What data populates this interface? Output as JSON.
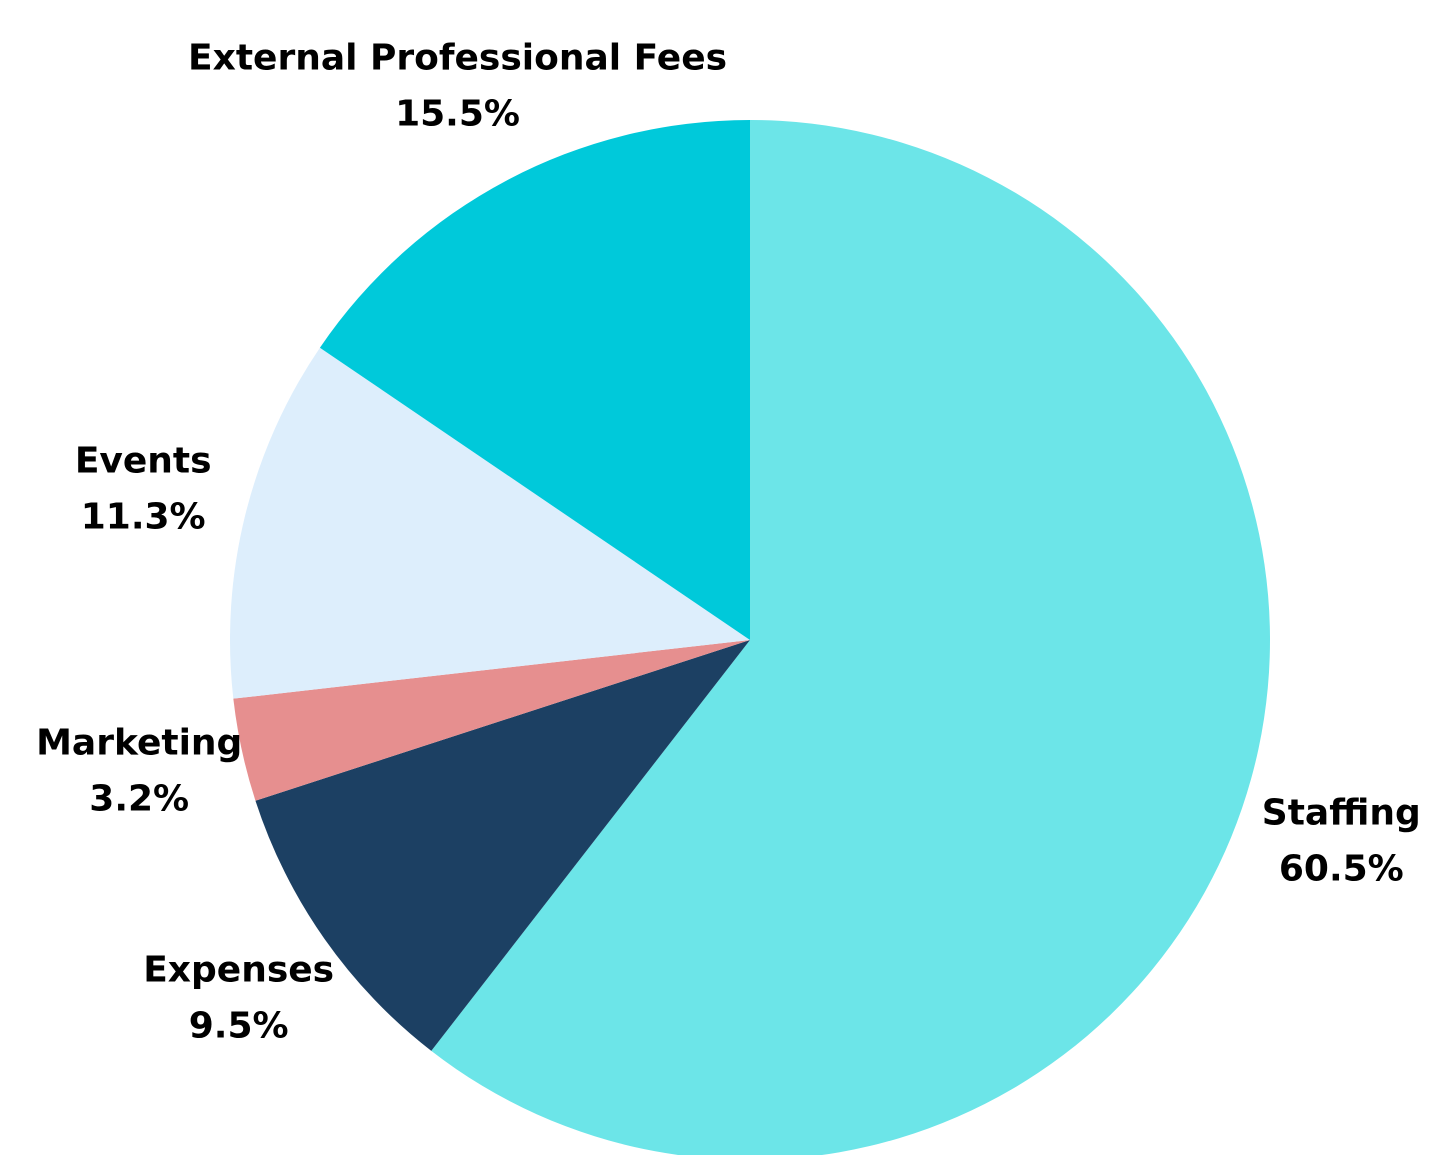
{
  "chart_data": {
    "type": "pie",
    "categories": [
      "Staffing",
      "Expenses",
      "Marketing",
      "Events",
      "External Professional Fees"
    ],
    "values": [
      60.5,
      9.5,
      3.2,
      11.3,
      15.5
    ],
    "value_labels": [
      "60.5%",
      "9.5%",
      "3.2%",
      "11.3%",
      "15.5%"
    ],
    "colors": [
      "#6ce5e8",
      "#1c4063",
      "#e68f8f",
      "#ddeefc",
      "#00c9da"
    ]
  }
}
